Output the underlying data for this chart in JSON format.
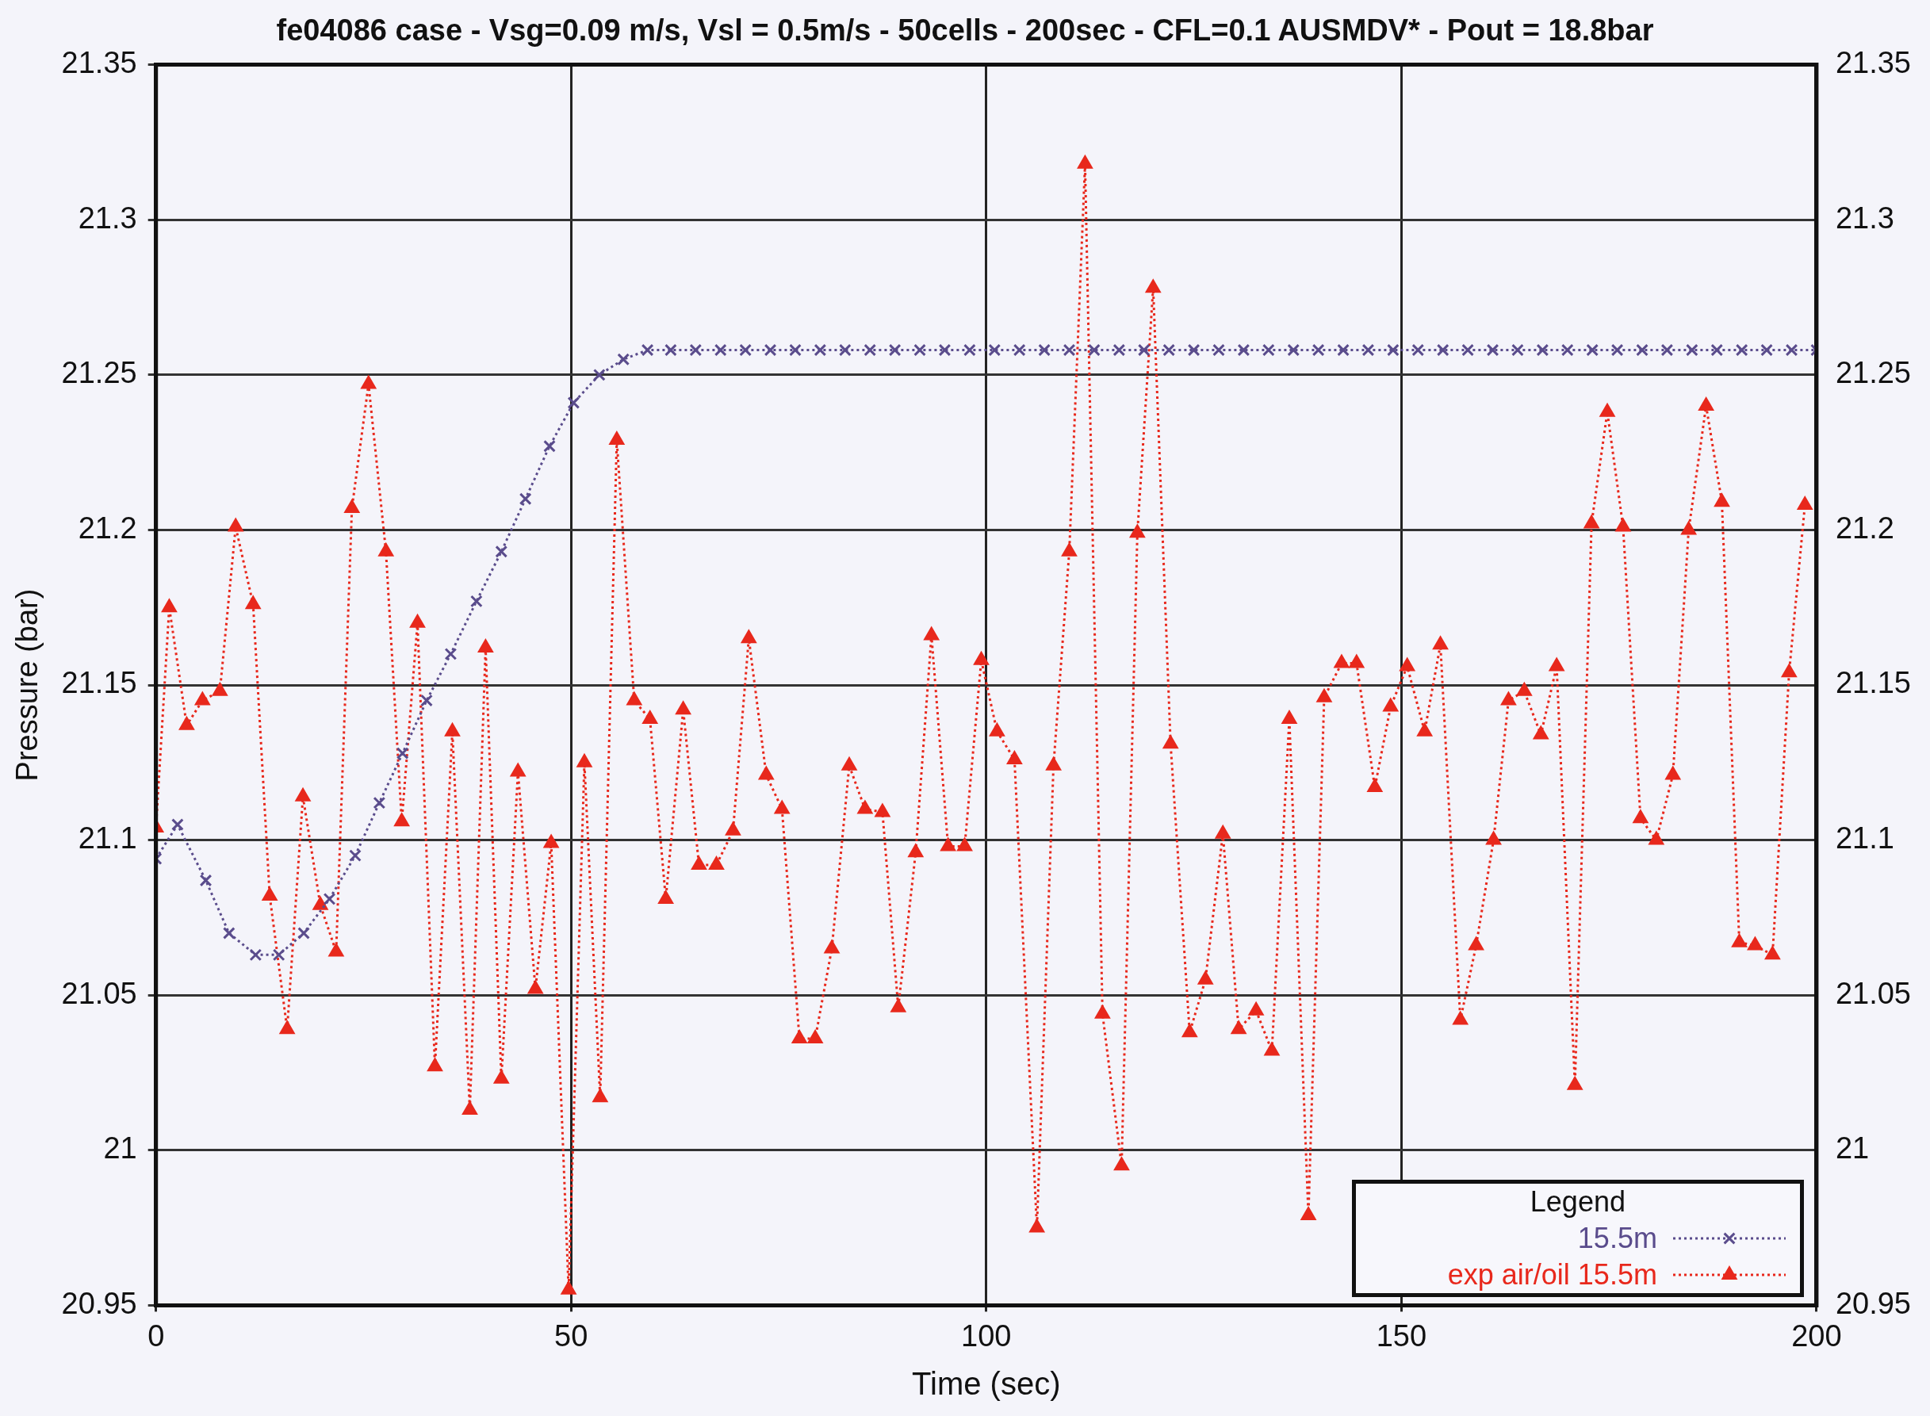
{
  "chart_data": {
    "type": "line",
    "title": "fe04086 case - Vsg=0.09 m/s, Vsl = 0.5m/s - 50cells - 200sec - CFL=0.1 AUSMDV* - Pout = 18.8bar",
    "xlabel": "Time (sec)",
    "ylabel": "Pressure (bar)",
    "legend_title": "Legend",
    "xlim": [
      0,
      200
    ],
    "xticks": [
      0,
      50,
      100,
      150,
      200
    ],
    "ylim": [
      20.95,
      21.35
    ],
    "yticks": [
      20.95,
      21,
      21.05,
      21.1,
      21.15,
      21.2,
      21.25,
      21.3,
      21.35
    ],
    "y2lim": [
      20.95,
      21.35
    ],
    "y2ticks": [
      20.95,
      21,
      21.05,
      21.1,
      21.15,
      21.2,
      21.25,
      21.3,
      21.35
    ],
    "grid": true,
    "legend": "bottom right",
    "line_style": "dotted",
    "series": [
      {
        "name": "15.5m",
        "color": "#5a4c8c",
        "marker": "cross",
        "x": [
          0,
          2.6,
          6,
          8.8,
          12,
          14.8,
          17.8,
          20.9,
          24,
          26.9,
          29.7,
          32.6,
          35.5,
          38.6,
          41.6,
          44.5,
          47.4,
          50.3,
          53.4,
          56.3,
          59.2,
          62,
          65,
          68,
          71,
          74,
          77,
          80,
          83,
          86,
          89,
          92,
          95,
          98,
          101,
          104,
          107,
          110,
          113,
          116,
          119,
          122,
          125,
          128,
          131,
          134,
          137,
          140,
          143,
          146,
          149,
          152,
          155,
          158,
          161,
          164,
          167,
          170,
          173,
          176,
          179,
          182,
          185,
          188,
          191,
          194,
          197,
          200
        ],
        "values": [
          21.094,
          21.105,
          21.087,
          21.07,
          21.063,
          21.063,
          21.07,
          21.081,
          21.095,
          21.112,
          21.128,
          21.145,
          21.16,
          21.177,
          21.193,
          21.21,
          21.227,
          21.241,
          21.25,
          21.255,
          21.258,
          21.258,
          21.258,
          21.258,
          21.258,
          21.258,
          21.258,
          21.258,
          21.258,
          21.258,
          21.258,
          21.258,
          21.258,
          21.258,
          21.258,
          21.258,
          21.258,
          21.258,
          21.258,
          21.258,
          21.258,
          21.258,
          21.258,
          21.258,
          21.258,
          21.258,
          21.258,
          21.258,
          21.258,
          21.258,
          21.258,
          21.258,
          21.258,
          21.258,
          21.258,
          21.258,
          21.258,
          21.258,
          21.258,
          21.258,
          21.258,
          21.258,
          21.258,
          21.258,
          21.258,
          21.258,
          21.258,
          21.258
        ]
      },
      {
        "name": "exp air/oil 15.5m",
        "color": "#e8281c",
        "marker": "triangle",
        "x": [
          0,
          1.6,
          3.7,
          5.6,
          7.7,
          9.6,
          11.7,
          13.7,
          15.8,
          17.7,
          19.8,
          21.7,
          23.6,
          25.6,
          27.7,
          29.6,
          31.5,
          33.6,
          35.7,
          37.8,
          39.7,
          41.6,
          43.6,
          45.7,
          47.6,
          49.7,
          51.6,
          53.5,
          55.5,
          57.6,
          59.5,
          61.4,
          63.5,
          65.4,
          67.5,
          69.5,
          71.4,
          73.5,
          75.4,
          77.5,
          79.4,
          81.4,
          83.5,
          85.4,
          87.5,
          89.4,
          91.5,
          93.4,
          95.4,
          97.4,
          99.4,
          101.3,
          103.4,
          106.1,
          108.1,
          110,
          111.9,
          114,
          116.3,
          118.2,
          120.1,
          122.2,
          124.5,
          126.4,
          128.5,
          130.4,
          132.5,
          134.4,
          136.5,
          138.8,
          140.7,
          142.8,
          144.6,
          146.8,
          148.7,
          150.7,
          152.8,
          154.7,
          157.1,
          159,
          161.1,
          162.9,
          164.8,
          166.8,
          168.7,
          170.9,
          172.9,
          174.8,
          176.7,
          178.8,
          180.7,
          182.7,
          184.6,
          186.7,
          188.6,
          190.7,
          192.6,
          194.7,
          196.7,
          198.6
        ],
        "values": [
          21.104,
          21.175,
          21.137,
          21.145,
          21.148,
          21.201,
          21.176,
          21.082,
          21.039,
          21.114,
          21.079,
          21.064,
          21.207,
          21.247,
          21.193,
          21.106,
          21.17,
          21.027,
          21.135,
          21.013,
          21.162,
          21.023,
          21.122,
          21.052,
          21.099,
          20.955,
          21.125,
          21.017,
          21.229,
          21.145,
          21.139,
          21.081,
          21.142,
          21.092,
          21.092,
          21.103,
          21.165,
          21.121,
          21.11,
          21.036,
          21.036,
          21.065,
          21.124,
          21.11,
          21.109,
          21.046,
          21.096,
          21.166,
          21.098,
          21.098,
          21.158,
          21.135,
          21.126,
          20.975,
          21.124,
          21.193,
          21.318,
          21.044,
          20.995,
          21.199,
          21.278,
          21.131,
          21.038,
          21.055,
          21.102,
          21.039,
          21.045,
          21.032,
          21.139,
          20.979,
          21.146,
          21.157,
          21.157,
          21.117,
          21.143,
          21.156,
          21.135,
          21.163,
          21.042,
          21.066,
          21.1,
          21.145,
          21.148,
          21.134,
          21.156,
          21.021,
          21.202,
          21.238,
          21.201,
          21.107,
          21.1,
          21.121,
          21.2,
          21.24,
          21.209,
          21.067,
          21.066,
          21.063,
          21.154,
          21.208
        ]
      }
    ]
  }
}
